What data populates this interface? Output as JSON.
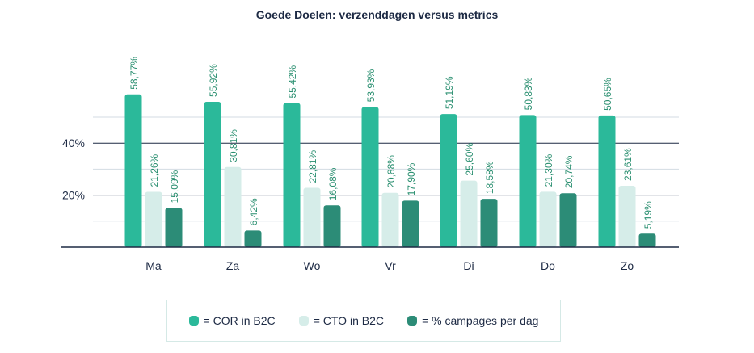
{
  "chart_data": {
    "type": "bar",
    "title": "Goede Doelen: verzenddagen versus metrics",
    "categories": [
      "Ma",
      "Za",
      "Wo",
      "Vr",
      "Di",
      "Do",
      "Zo"
    ],
    "series": [
      {
        "name": "= COR in B2C",
        "color": "#2bb99a",
        "values": [
          58.77,
          55.92,
          55.42,
          53.93,
          51.19,
          50.83,
          50.65
        ],
        "labels": [
          "58,77%",
          "55,92%",
          "55,42%",
          "53,93%",
          "51,19%",
          "50,83%",
          "50,65%"
        ]
      },
      {
        "name": "= CTO in B2C",
        "color": "#d6ede9",
        "values": [
          21.26,
          30.81,
          22.81,
          20.88,
          25.6,
          21.3,
          23.61
        ],
        "labels": [
          "21,26%",
          "30,81%",
          "22,81%",
          "20,88%",
          "25,60%",
          "21,30%",
          "23,61%"
        ]
      },
      {
        "name": "= % campages per dag",
        "color": "#2c8c77",
        "values": [
          15.09,
          6.42,
          16.08,
          17.9,
          18.58,
          20.74,
          5.19
        ],
        "labels": [
          "15,09%",
          "6,42%",
          "16,08%",
          "17,90%",
          "18,58%",
          "20,74%",
          "5,19%"
        ]
      }
    ],
    "yticks": [
      {
        "value": 20,
        "label": "20%"
      },
      {
        "value": 40,
        "label": "40%"
      }
    ],
    "minor_grid": [
      10,
      30,
      50
    ],
    "ylim": [
      0,
      60
    ],
    "legend_position": "bottom"
  }
}
